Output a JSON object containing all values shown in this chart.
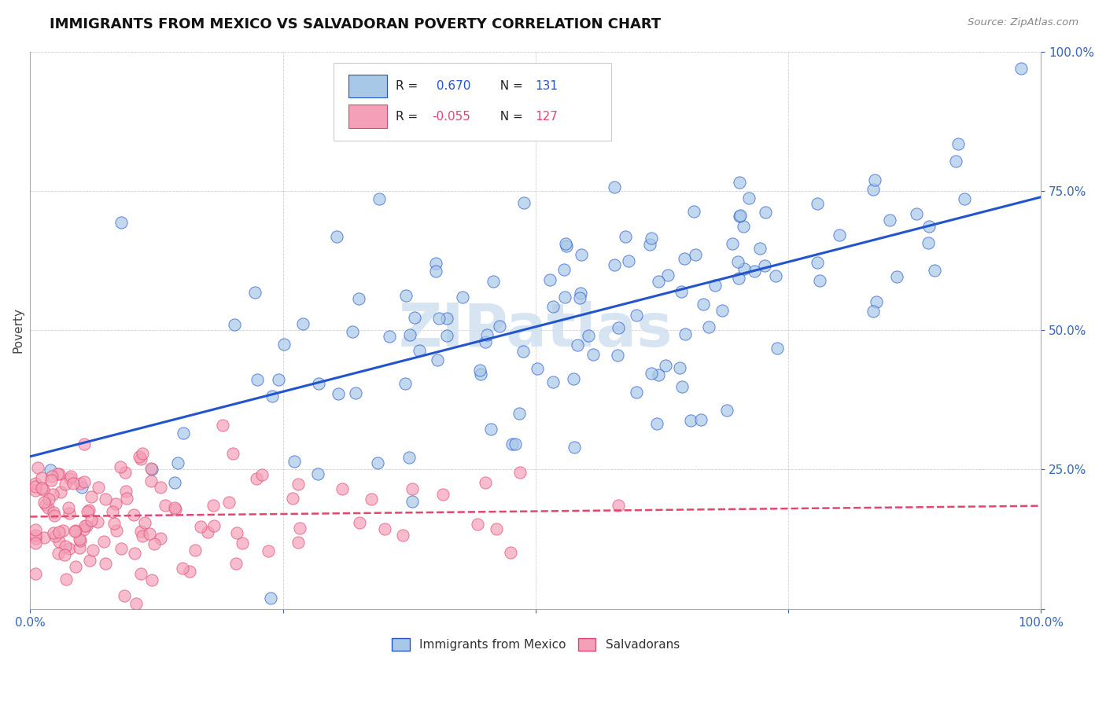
{
  "title": "IMMIGRANTS FROM MEXICO VS SALVADORAN POVERTY CORRELATION CHART",
  "source": "Source: ZipAtlas.com",
  "ylabel": "Poverty",
  "r_mexico": 0.67,
  "n_mexico": 131,
  "r_salvador": -0.055,
  "n_salvador": 127,
  "color_mexico": "#a8c8e8",
  "color_salvador": "#f4a0b8",
  "line_color_mexico": "#2255cc",
  "line_color_salvador": "#e04870",
  "background_color": "#ffffff",
  "title_fontsize": 13,
  "legend_r_color": "#2255cc",
  "watermark_color": "#d0e0f0",
  "seed_mexico": 42,
  "seed_salvador": 99
}
